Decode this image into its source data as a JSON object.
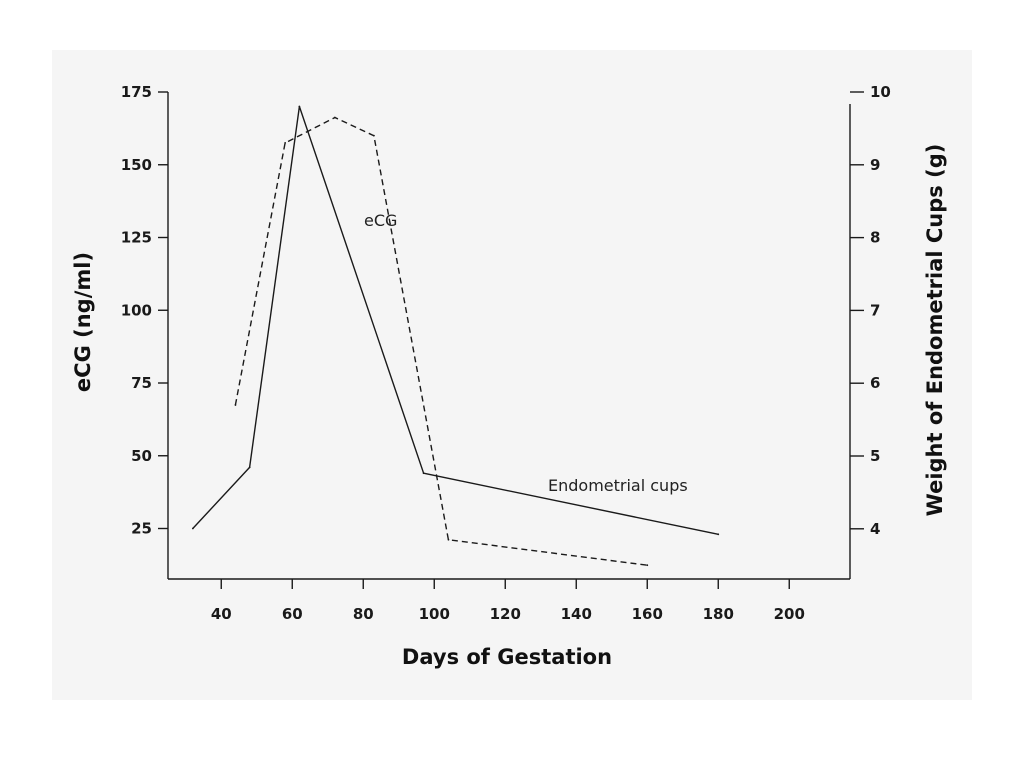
{
  "chart_data": {
    "type": "line",
    "xlabel": "Days of Gestation",
    "ylabel_left": "eCG (ng/ml)",
    "ylabel_right": "Weight of Endometrial Cups (g)",
    "x_ticks": [
      40,
      60,
      80,
      100,
      120,
      140,
      160,
      180,
      200
    ],
    "xlim": [
      25,
      210
    ],
    "y_left_ticks": [
      25,
      50,
      75,
      100,
      125,
      150,
      175
    ],
    "y_left_lim": [
      15,
      175
    ],
    "y_right_ticks": [
      4,
      5,
      6,
      7,
      8,
      9,
      10
    ],
    "y_right_lim": [
      3.4,
      10
    ],
    "grid": false,
    "series": [
      {
        "name": "eCG",
        "axis": "left",
        "style": "solid",
        "points": [
          [
            32,
            25
          ],
          [
            48,
            46
          ],
          [
            62,
            170
          ],
          [
            97,
            44
          ],
          [
            180,
            23
          ]
        ]
      },
      {
        "name": "Endometrial cups",
        "axis": "right",
        "style": "dashed",
        "points": [
          [
            44,
            5.7
          ],
          [
            58,
            9.3
          ],
          [
            72,
            9.65
          ],
          [
            83,
            9.4
          ],
          [
            104,
            3.85
          ],
          [
            160,
            3.5
          ]
        ]
      }
    ]
  }
}
